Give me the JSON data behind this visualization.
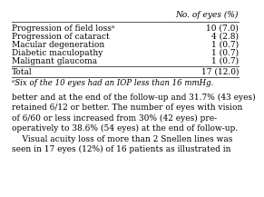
{
  "header": "No. of eyes (%)",
  "rows": [
    [
      "Progression of field lossᵃ",
      "10 (7.0)"
    ],
    [
      "Progression of cataract",
      "4 (2.8)"
    ],
    [
      "Macular degeneration",
      "1 (0.7)"
    ],
    [
      "Diabetic maculopathy",
      "1 (0.7)"
    ],
    [
      "Malignant glaucoma",
      "1 (0.7)"
    ]
  ],
  "total_label": "Total",
  "total_value": "17 (12.0)",
  "footnote": "ᵃSix of the 10 eyes had an IOP less than 16 mmHg.",
  "body_text": [
    "better and at the end of the follow-up and 31.7% (43 eyes)",
    "retained 6/12 or better. The number of eyes with vision",
    "of 6/60 or less increased from 30% (42 eyes) pre-",
    "operatively to 38.6% (54 eyes) at the end of follow-up.",
    "    Visual acuity loss of more than 2 Snellen lines was",
    "seen in 17 eyes (12%) of 16 patients as illustrated in"
  ],
  "bg_color": "#ffffff",
  "text_color": "#000000",
  "line_color": "#555555",
  "font_size": 6.5,
  "header_font_size": 6.5,
  "footnote_font_size": 6.2,
  "body_font_size": 6.5
}
